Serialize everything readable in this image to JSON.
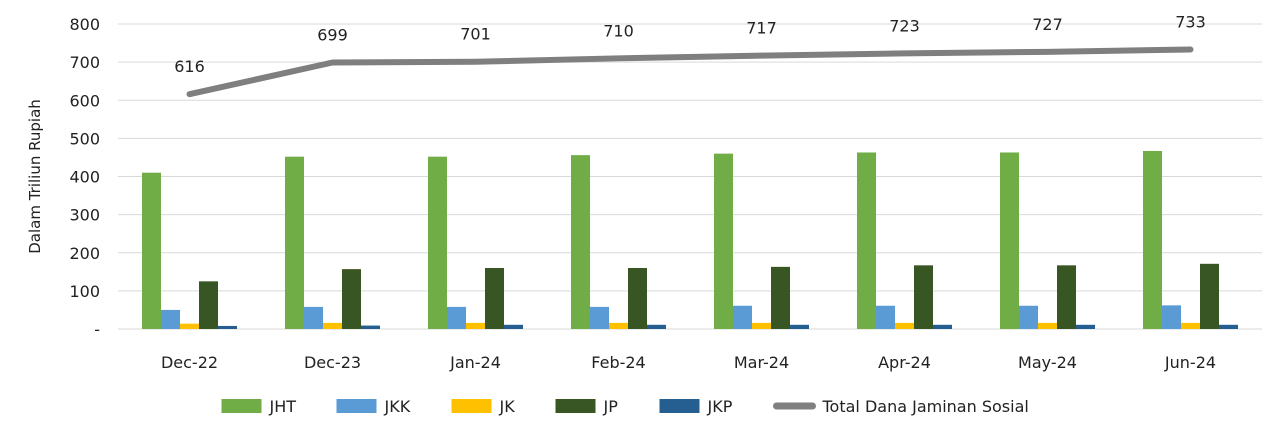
{
  "chart_data": {
    "type": "bar",
    "categories": [
      "Dec-22",
      "Dec-23",
      "Jan-24",
      "Feb-24",
      "Mar-24",
      "Apr-24",
      "May-24",
      "Jun-24"
    ],
    "series": [
      {
        "name": "JHT",
        "color": "#70ad47",
        "values": [
          410,
          452,
          452,
          456,
          460,
          463,
          463,
          467
        ]
      },
      {
        "name": "JKK",
        "color": "#5b9bd5",
        "values": [
          50,
          58,
          58,
          58,
          61,
          61,
          61,
          62
        ]
      },
      {
        "name": "JK",
        "color": "#ffc000",
        "values": [
          14,
          16,
          16,
          16,
          16,
          16,
          16,
          16
        ]
      },
      {
        "name": "JP",
        "color": "#375623",
        "values": [
          125,
          157,
          160,
          160,
          163,
          167,
          167,
          171
        ]
      },
      {
        "name": "JKP",
        "color": "#255e91",
        "values": [
          8,
          9,
          11,
          11,
          11,
          11,
          11,
          11
        ]
      }
    ],
    "line_series": {
      "name": "Total Dana Jaminan Sosial",
      "color": "#7f7f7f",
      "values": [
        616,
        699,
        701,
        710,
        717,
        723,
        727,
        733
      ],
      "labels": [
        "616",
        "699",
        "701",
        "710",
        "717",
        "723",
        "727",
        "733"
      ]
    },
    "ylabel": "Dalam Triliun Rupiah",
    "ylim": [
      0,
      800
    ],
    "yticks": [
      {
        "value": 0,
        "label": "-"
      },
      {
        "value": 100,
        "label": "100"
      },
      {
        "value": 200,
        "label": "200"
      },
      {
        "value": 300,
        "label": "300"
      },
      {
        "value": 400,
        "label": "400"
      },
      {
        "value": 500,
        "label": "500"
      },
      {
        "value": 600,
        "label": "600"
      },
      {
        "value": 700,
        "label": "700"
      },
      {
        "value": 800,
        "label": "800"
      }
    ],
    "grid": true,
    "legend_position": "bottom"
  }
}
